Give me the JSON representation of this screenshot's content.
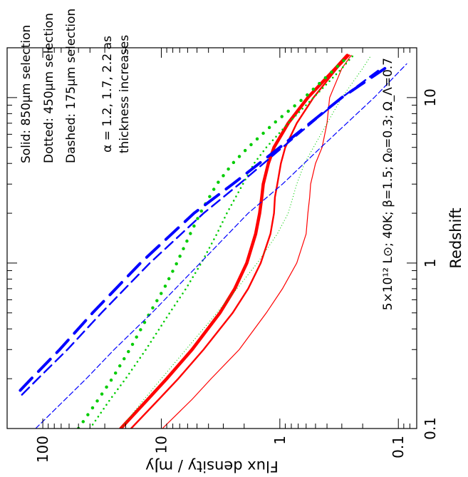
{
  "chart_data": {
    "type": "line",
    "xlabel": "Redshift",
    "ylabel": "Flux density / mJy",
    "x_scale": "log",
    "y_scale": "log",
    "xlim": [
      0.1,
      20
    ],
    "ylim": [
      0.07,
      200
    ],
    "x_ticks": [
      {
        "value": 0.1,
        "label": "0.1"
      },
      {
        "value": 1,
        "label": "1"
      },
      {
        "value": 10,
        "label": "10"
      }
    ],
    "y_ticks": [
      {
        "value": 0.1,
        "label": "0.1"
      },
      {
        "value": 1,
        "label": "1"
      },
      {
        "value": 10,
        "label": "10"
      },
      {
        "value": 100,
        "label": "100"
      }
    ],
    "grid": false,
    "orientation_note": "figure rotated 90 degrees counter-clockwise",
    "annotations": {
      "solid": "Solid: 850µm selection",
      "dotted": "Dotted: 450µm selection",
      "dashed": "Dashed: 175µm selection",
      "alpha_line1": "α = 1.2, 1.7, 2.2 as",
      "alpha_line2": "thickness increases",
      "model": "5×10¹² L⊙; 40K; β=1.5; Ω₀=0.3; Ω_Λ=0.7"
    },
    "series": [
      {
        "selection": "850um",
        "alpha": 1.2,
        "color": "#ff0000",
        "style": "solid",
        "width": 1.2,
        "x": [
          0.1,
          0.15,
          0.2,
          0.3,
          0.5,
          0.7,
          1,
          1.5,
          2,
          2.5,
          3,
          4,
          5,
          7,
          10,
          15,
          18
        ],
        "y": [
          9.8,
          5.5,
          3.8,
          2.2,
          1.3,
          0.95,
          0.72,
          0.6,
          0.58,
          0.56,
          0.55,
          0.5,
          0.44,
          0.4,
          0.38,
          0.3,
          0.25
        ]
      },
      {
        "selection": "850um",
        "alpha": 1.7,
        "color": "#ff0000",
        "style": "solid",
        "width": 2.4,
        "x": [
          0.1,
          0.15,
          0.2,
          0.3,
          0.5,
          0.7,
          1,
          1.5,
          2,
          2.5,
          3,
          4,
          5,
          7,
          10,
          15,
          18
        ],
        "y": [
          18,
          10.5,
          7.2,
          4.4,
          2.5,
          1.85,
          1.45,
          1.2,
          1.12,
          1.1,
          1.05,
          0.98,
          0.9,
          0.72,
          0.52,
          0.33,
          0.26
        ]
      },
      {
        "selection": "850um",
        "alpha": 2.2,
        "color": "#ff0000",
        "style": "solid",
        "width": 4.5,
        "x": [
          0.1,
          0.15,
          0.2,
          0.3,
          0.5,
          0.7,
          1,
          1.5,
          2,
          2.5,
          3,
          4,
          5,
          7,
          10,
          15,
          18
        ],
        "y": [
          22,
          13,
          9,
          5.5,
          3.2,
          2.4,
          1.9,
          1.6,
          1.48,
          1.42,
          1.38,
          1.25,
          1.12,
          0.85,
          0.58,
          0.34,
          0.27
        ]
      },
      {
        "selection": "450um",
        "alpha": 1.2,
        "color": "#00cc00",
        "style": "dotted",
        "width": 1.2,
        "x": [
          0.1,
          0.15,
          0.2,
          0.3,
          0.5,
          0.7,
          1,
          1.5,
          2,
          3,
          4,
          5,
          7,
          10,
          15,
          18
        ],
        "y": [
          22,
          14,
          10,
          6.2,
          3.4,
          2.3,
          1.55,
          1.05,
          0.85,
          0.72,
          0.62,
          0.52,
          0.4,
          0.3,
          0.2,
          0.17
        ]
      },
      {
        "selection": "450um",
        "alpha": 1.7,
        "color": "#00cc00",
        "style": "dotted",
        "width": 2.6,
        "x": [
          0.1,
          0.15,
          0.2,
          0.3,
          0.5,
          0.7,
          1,
          1.5,
          2,
          3,
          4,
          5,
          7,
          10,
          15,
          18
        ],
        "y": [
          40,
          27,
          20,
          13.5,
          8.5,
          6.2,
          4.6,
          3.4,
          2.8,
          2.05,
          1.65,
          1.3,
          0.85,
          0.52,
          0.3,
          0.24
        ]
      },
      {
        "selection": "450um",
        "alpha": 2.2,
        "color": "#00cc00",
        "style": "dotted",
        "width": 4.5,
        "x": [
          0.1,
          0.15,
          0.2,
          0.3,
          0.5,
          0.7,
          1,
          1.5,
          2,
          3,
          4,
          5,
          7,
          10,
          15,
          18
        ],
        "y": [
          50,
          34,
          26,
          18.5,
          12.5,
          9.5,
          7.4,
          5.7,
          4.7,
          3.4,
          2.5,
          1.85,
          1.12,
          0.62,
          0.34,
          0.26
        ]
      },
      {
        "selection": "175um",
        "alpha": 1.2,
        "color": "#0000ff",
        "style": "dashed",
        "width": 1.2,
        "x": [
          0.1,
          0.2,
          0.3,
          0.5,
          1,
          2,
          3,
          5,
          10,
          16
        ],
        "y": [
          115,
          43,
          25,
          12,
          4.7,
          1.85,
          0.95,
          0.45,
          0.16,
          0.085
        ]
      },
      {
        "selection": "175um",
        "alpha": 1.7,
        "color": "#0000ff",
        "style": "dashed",
        "width": 2.4,
        "x": [
          0.16,
          0.2,
          0.3,
          0.5,
          1,
          2,
          3,
          5,
          10,
          15
        ],
        "y": [
          150,
          110,
          62,
          32,
          12.5,
          4.4,
          2.2,
          0.95,
          0.3,
          0.14
        ]
      },
      {
        "selection": "175um",
        "alpha": 2.2,
        "color": "#0000ff",
        "style": "dashed",
        "width": 4.0,
        "x": [
          0.17,
          0.2,
          0.3,
          0.5,
          1,
          2,
          3,
          5,
          10,
          15
        ],
        "y": [
          155,
          125,
          72,
          38,
          15,
          5.3,
          2.5,
          1.0,
          0.3,
          0.13
        ]
      }
    ]
  }
}
